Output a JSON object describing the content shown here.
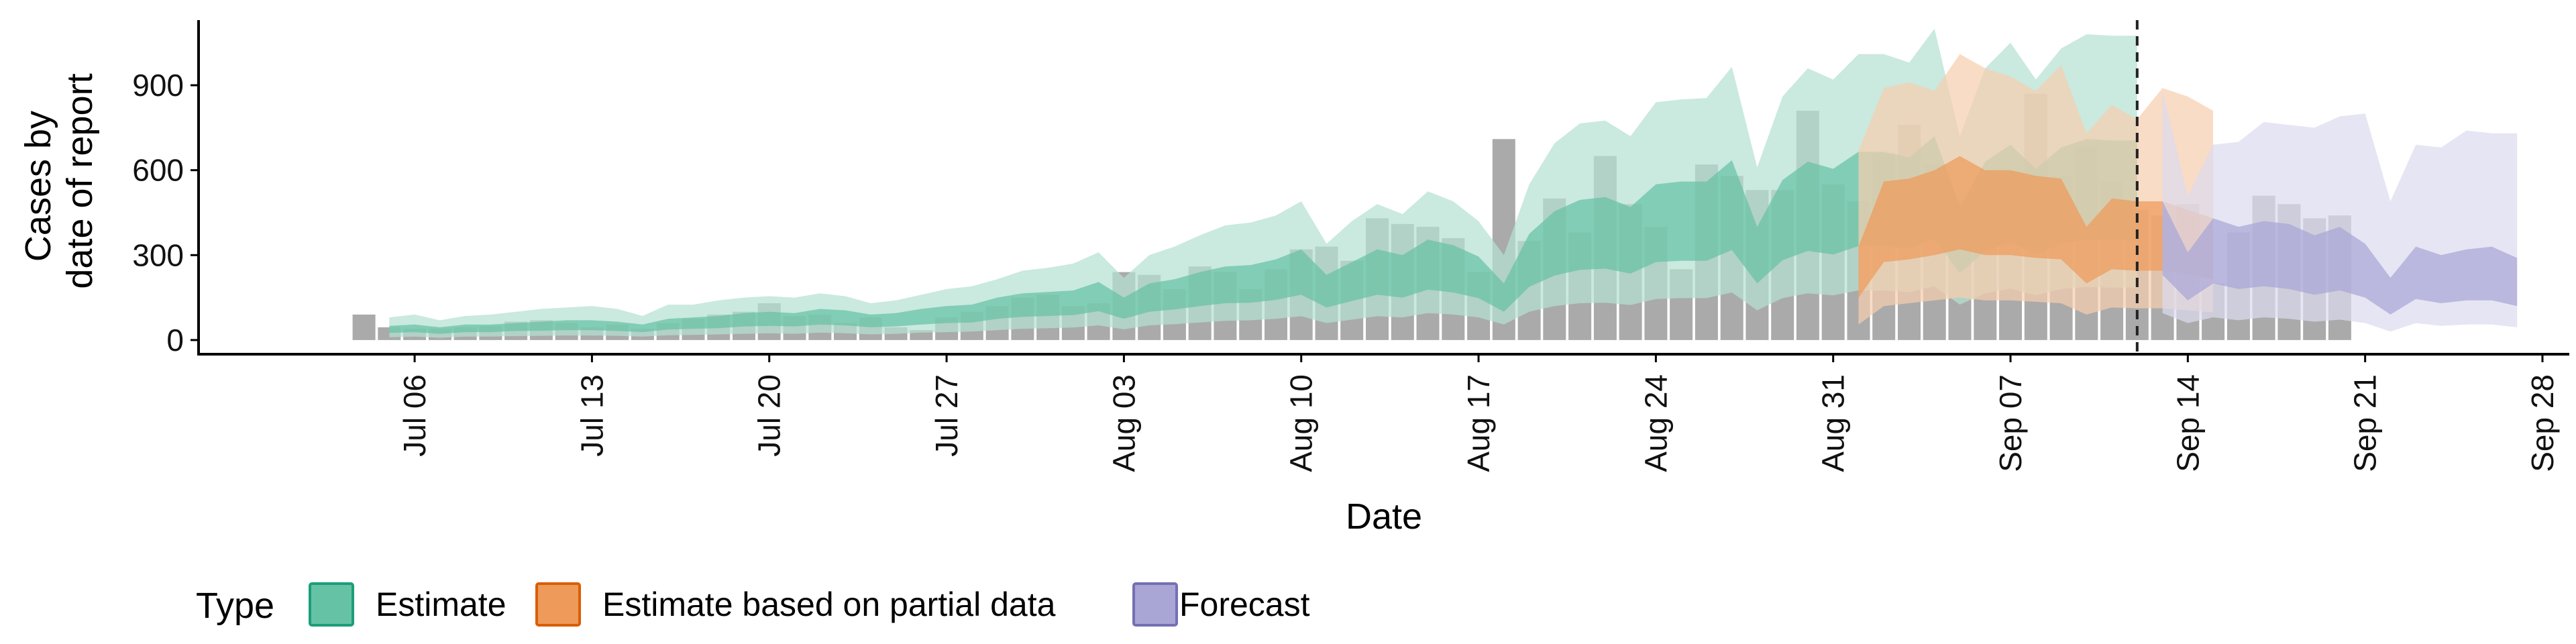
{
  "chart_data": {
    "type": "area",
    "title": "",
    "xlabel": "Date",
    "ylabel_lines": [
      "Cases by",
      "date of report"
    ],
    "ylim": [
      -50,
      1130
    ],
    "yticks": [
      0,
      300,
      600,
      900
    ],
    "xlim": [
      "2020-06-28",
      "2020-09-28"
    ],
    "xticks": [
      {
        "date": "2020-07-06",
        "label": "Jul 06"
      },
      {
        "date": "2020-07-13",
        "label": "Jul 13"
      },
      {
        "date": "2020-07-20",
        "label": "Jul 20"
      },
      {
        "date": "2020-07-27",
        "label": "Jul 27"
      },
      {
        "date": "2020-08-03",
        "label": "Aug 03"
      },
      {
        "date": "2020-08-10",
        "label": "Aug 10"
      },
      {
        "date": "2020-08-17",
        "label": "Aug 17"
      },
      {
        "date": "2020-08-24",
        "label": "Aug 24"
      },
      {
        "date": "2020-08-31",
        "label": "Aug 31"
      },
      {
        "date": "2020-09-07",
        "label": "Sep 07"
      },
      {
        "date": "2020-09-14",
        "label": "Sep 14"
      },
      {
        "date": "2020-09-21",
        "label": "Sep 21"
      },
      {
        "date": "2020-09-28",
        "label": "Sep 28"
      }
    ],
    "grid": false,
    "forecast_start_line": "2020-09-12",
    "legend": {
      "title": "Type",
      "position": "bottom-left",
      "entries": [
        {
          "label": "Estimate",
          "fill": "#66c2a5",
          "stroke": "#1b9e77"
        },
        {
          "label": "Estimate based on partial data",
          "fill": "#ee9a5a",
          "stroke": "#d95f02"
        },
        {
          "label": "Forecast",
          "fill": "#a9a6d6",
          "stroke": "#7570b3"
        }
      ]
    },
    "colors": {
      "observed_bars": "#aaaaaa",
      "Estimate": {
        "outer": "#b6e0d2",
        "inner": "#66c2a5"
      },
      "Estimate based on partial data": {
        "outer": "#f6cfae",
        "inner": "#ee9a5a"
      },
      "Forecast": {
        "outer": "#dcdbee",
        "inner": "#a9a6d6"
      }
    },
    "observed": {
      "start_date": "2020-07-04",
      "values": [
        90,
        45,
        40,
        40,
        45,
        50,
        65,
        70,
        60,
        45,
        55,
        40,
        60,
        75,
        90,
        100,
        130,
        85,
        90,
        60,
        80,
        45,
        35,
        80,
        100,
        120,
        150,
        160,
        120,
        130,
        240,
        230,
        180,
        260,
        240,
        180,
        250,
        320,
        330,
        280,
        430,
        410,
        400,
        360,
        240,
        710,
        350,
        500,
        380,
        650,
        480,
        400,
        250,
        620,
        580,
        530,
        530,
        810,
        550,
        490,
        660,
        760,
        620,
        490,
        460,
        430,
        870,
        580,
        680,
        560,
        460,
        440,
        480,
        200,
        380,
        510,
        480,
        430,
        440
      ]
    },
    "series": [
      {
        "name": "Estimate",
        "start_date": "2020-07-05",
        "outer_upper": [
          80,
          90,
          70,
          85,
          90,
          100,
          110,
          115,
          120,
          110,
          85,
          125,
          125,
          140,
          150,
          155,
          150,
          165,
          155,
          130,
          140,
          160,
          180,
          190,
          215,
          245,
          255,
          270,
          310,
          220,
          300,
          330,
          370,
          405,
          415,
          440,
          490,
          340,
          420,
          480,
          445,
          525,
          490,
          420,
          300,
          550,
          695,
          765,
          775,
          720,
          840,
          850,
          855,
          965,
          610,
          860,
          960,
          920,
          1010,
          1010,
          980,
          1100,
          720,
          960,
          1050,
          920,
          1030,
          1080,
          1075,
          1075
        ],
        "inner_upper": [
          50,
          55,
          45,
          55,
          55,
          60,
          65,
          70,
          70,
          65,
          55,
          75,
          80,
          85,
          95,
          100,
          95,
          110,
          105,
          90,
          95,
          110,
          120,
          125,
          150,
          165,
          170,
          175,
          205,
          150,
          200,
          215,
          240,
          260,
          265,
          285,
          320,
          230,
          275,
          320,
          300,
          355,
          335,
          295,
          200,
          375,
          455,
          495,
          505,
          470,
          550,
          560,
          560,
          635,
          400,
          565,
          630,
          605,
          665,
          665,
          645,
          720,
          470,
          630,
          690,
          605,
          680,
          710,
          705,
          705
        ],
        "inner_lower": [
          25,
          28,
          22,
          28,
          28,
          32,
          33,
          35,
          35,
          32,
          28,
          37,
          40,
          42,
          48,
          50,
          48,
          55,
          52,
          45,
          48,
          55,
          60,
          62,
          75,
          82,
          85,
          88,
          102,
          75,
          100,
          108,
          120,
          130,
          132,
          142,
          160,
          115,
          138,
          160,
          150,
          178,
          168,
          148,
          100,
          188,
          228,
          248,
          252,
          235,
          275,
          280,
          280,
          318,
          200,
          282,
          315,
          302,
          332,
          332,
          322,
          360,
          235,
          315,
          345,
          302,
          340,
          355,
          352,
          352
        ],
        "outer_lower": [
          10,
          12,
          8,
          12,
          12,
          14,
          15,
          16,
          16,
          15,
          12,
          17,
          18,
          20,
          22,
          24,
          22,
          26,
          24,
          20,
          22,
          26,
          28,
          30,
          35,
          40,
          42,
          44,
          52,
          38,
          52,
          56,
          62,
          68,
          70,
          75,
          84,
          60,
          72,
          84,
          80,
          95,
          90,
          80,
          55,
          100,
          120,
          130,
          132,
          124,
          145,
          148,
          148,
          168,
          105,
          148,
          165,
          158,
          175,
          175,
          170,
          190,
          125,
          165,
          182,
          158,
          180,
          188,
          185,
          185
        ]
      },
      {
        "name": "Estimate based on partial data",
        "start_date": "2020-09-01",
        "outer_upper": [
          670,
          890,
          910,
          880,
          1010,
          960,
          930,
          880,
          970,
          730,
          830,
          780,
          890,
          860,
          810
        ],
        "inner_upper": [
          330,
          560,
          570,
          600,
          650,
          600,
          600,
          580,
          570,
          400,
          500,
          490,
          490,
          460,
          430
        ],
        "inner_lower": [
          150,
          275,
          285,
          300,
          320,
          300,
          300,
          290,
          285,
          200,
          250,
          245,
          245,
          230,
          215
        ],
        "outer_lower": [
          55,
          120,
          130,
          140,
          150,
          140,
          140,
          135,
          130,
          90,
          115,
          112,
          112,
          105,
          98
        ]
      },
      {
        "name": "Forecast",
        "start_date": "2020-09-13",
        "outer_upper": [
          880,
          510,
          690,
          700,
          770,
          760,
          750,
          790,
          800,
          490,
          690,
          680,
          740,
          730,
          730
        ],
        "inner_upper": [
          490,
          310,
          430,
          400,
          420,
          410,
          370,
          400,
          340,
          220,
          330,
          300,
          320,
          330,
          290
        ],
        "inner_lower": [
          230,
          140,
          200,
          180,
          190,
          180,
          160,
          175,
          150,
          90,
          145,
          130,
          140,
          140,
          120
        ],
        "outer_lower": [
          95,
          60,
          80,
          70,
          80,
          75,
          65,
          72,
          60,
          30,
          60,
          50,
          55,
          55,
          45
        ]
      }
    ]
  }
}
